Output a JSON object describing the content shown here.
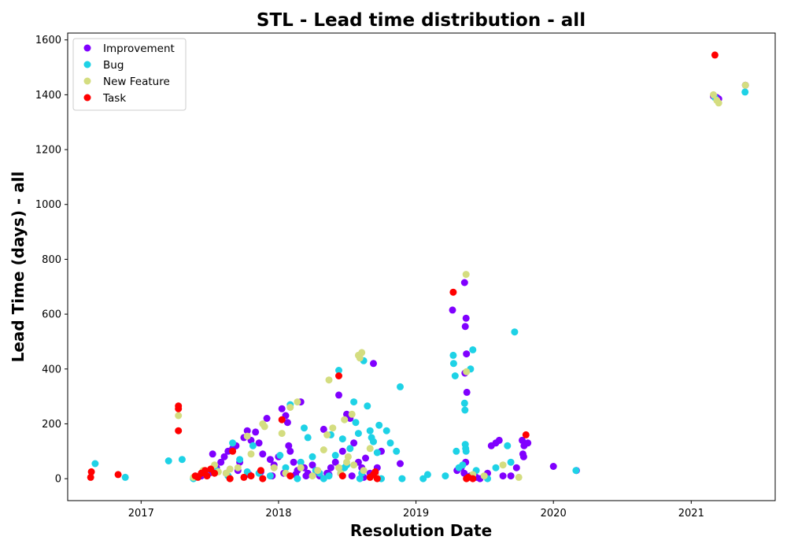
{
  "chart_data": {
    "type": "scatter",
    "title": "STL - Lead time distribution - all",
    "xlabel": "Resolution Date",
    "ylabel": "Lead Time (days) - all",
    "x_ticks": [
      "2017",
      "2018",
      "2019",
      "2020",
      "2021"
    ],
    "y_ticks": [
      "0",
      "200",
      "400",
      "600",
      "800",
      "1000",
      "1200",
      "1400",
      "1600"
    ],
    "xlim": [
      "2016-06-20",
      "2021-08-12"
    ],
    "ylim": [
      -80,
      1625
    ],
    "grid": false,
    "legend_position": "top-left",
    "series": [
      {
        "name": "Improvement",
        "color": "#8000ff",
        "points": [
          [
            "2017-06-10",
            10
          ],
          [
            "2017-07-01",
            20
          ],
          [
            "2017-07-10",
            90
          ],
          [
            "2017-07-20",
            40
          ],
          [
            "2017-08-01",
            60
          ],
          [
            "2017-08-10",
            80
          ],
          [
            "2017-08-20",
            100
          ],
          [
            "2017-09-01",
            110
          ],
          [
            "2017-09-10",
            120
          ],
          [
            "2017-09-20",
            60
          ],
          [
            "2017-10-01",
            150
          ],
          [
            "2017-10-10",
            175
          ],
          [
            "2017-10-20",
            140
          ],
          [
            "2017-11-01",
            170
          ],
          [
            "2017-11-10",
            130
          ],
          [
            "2017-11-20",
            90
          ],
          [
            "2017-12-01",
            220
          ],
          [
            "2017-12-10",
            70
          ],
          [
            "2017-12-20",
            50
          ],
          [
            "2018-01-01",
            80
          ],
          [
            "2018-01-10",
            255
          ],
          [
            "2018-01-20",
            230
          ],
          [
            "2018-01-25",
            205
          ],
          [
            "2018-01-28",
            120
          ],
          [
            "2018-02-01",
            100
          ],
          [
            "2018-02-10",
            60
          ],
          [
            "2018-02-20",
            30
          ],
          [
            "2018-03-01",
            280
          ],
          [
            "2018-03-10",
            40
          ],
          [
            "2018-03-20",
            20
          ],
          [
            "2018-04-01",
            50
          ],
          [
            "2018-04-10",
            30
          ],
          [
            "2018-04-20",
            10
          ],
          [
            "2018-05-01",
            180
          ],
          [
            "2018-05-10",
            20
          ],
          [
            "2018-05-20",
            40
          ],
          [
            "2018-06-01",
            60
          ],
          [
            "2018-06-10",
            305
          ],
          [
            "2018-06-20",
            100
          ],
          [
            "2018-07-01",
            235
          ],
          [
            "2018-07-10",
            220
          ],
          [
            "2018-07-20",
            130
          ],
          [
            "2018-08-01",
            60
          ],
          [
            "2018-08-10",
            40
          ],
          [
            "2018-08-20",
            75
          ],
          [
            "2018-09-01",
            20
          ],
          [
            "2018-09-10",
            420
          ],
          [
            "2018-09-20",
            40
          ],
          [
            "2018-10-01",
            100
          ],
          [
            "2018-11-20",
            55
          ],
          [
            "2017-08-15",
            20
          ],
          [
            "2017-09-15",
            30
          ],
          [
            "2017-10-15",
            15
          ],
          [
            "2017-11-15",
            25
          ],
          [
            "2017-12-15",
            10
          ],
          [
            "2018-01-15",
            20
          ],
          [
            "2018-02-15",
            15
          ],
          [
            "2018-03-15",
            10
          ],
          [
            "2018-04-15",
            25
          ],
          [
            "2018-05-15",
            15
          ],
          [
            "2018-06-15",
            20
          ],
          [
            "2018-07-15",
            10
          ],
          [
            "2018-08-15",
            5
          ],
          [
            "2018-09-15",
            15
          ],
          [
            "2019-04-08",
            615
          ],
          [
            "2019-05-10",
            715
          ],
          [
            "2019-05-14",
            585
          ],
          [
            "2019-05-12",
            555
          ],
          [
            "2019-05-15",
            455
          ],
          [
            "2019-05-16",
            315
          ],
          [
            "2019-05-11",
            385
          ],
          [
            "2019-05-13",
            60
          ],
          [
            "2019-05-09",
            20
          ],
          [
            "2019-04-20",
            30
          ],
          [
            "2019-05-01",
            40
          ],
          [
            "2019-05-25",
            10
          ],
          [
            "2019-06-10",
            5
          ],
          [
            "2019-06-20",
            0
          ],
          [
            "2019-07-10",
            20
          ],
          [
            "2019-07-20",
            120
          ],
          [
            "2019-08-01",
            130
          ],
          [
            "2019-08-10",
            140
          ],
          [
            "2019-08-20",
            10
          ],
          [
            "2019-09-10",
            10
          ],
          [
            "2019-09-25",
            40
          ],
          [
            "2019-10-10",
            140
          ],
          [
            "2019-10-15",
            120
          ],
          [
            "2019-10-12",
            90
          ],
          [
            "2019-10-14",
            80
          ],
          [
            "2019-10-25",
            130
          ],
          [
            "2020-01-01",
            45
          ],
          [
            "2020-03-02",
            30
          ],
          [
            "2021-03-01",
            1395
          ],
          [
            "2021-03-10",
            1390
          ],
          [
            "2021-03-15",
            1385
          ],
          [
            "2021-05-25",
            1435
          ]
        ]
      },
      {
        "name": "Bug",
        "color": "#1ed2e6",
        "points": [
          [
            "2016-09-01",
            55
          ],
          [
            "2016-11-20",
            5
          ],
          [
            "2017-03-15",
            65
          ],
          [
            "2017-04-20",
            70
          ],
          [
            "2017-05-20",
            0
          ],
          [
            "2017-06-20",
            20
          ],
          [
            "2017-07-20",
            30
          ],
          [
            "2017-08-20",
            10
          ],
          [
            "2017-09-01",
            130
          ],
          [
            "2017-09-20",
            70
          ],
          [
            "2017-10-10",
            25
          ],
          [
            "2017-10-25",
            120
          ],
          [
            "2017-11-10",
            20
          ],
          [
            "2017-12-10",
            10
          ],
          [
            "2018-01-05",
            85
          ],
          [
            "2018-01-20",
            40
          ],
          [
            "2018-02-01",
            270
          ],
          [
            "2018-02-20",
            0
          ],
          [
            "2018-03-01",
            60
          ],
          [
            "2018-03-10",
            185
          ],
          [
            "2018-03-20",
            150
          ],
          [
            "2018-04-01",
            80
          ],
          [
            "2018-04-10",
            30
          ],
          [
            "2018-04-20",
            20
          ],
          [
            "2018-05-01",
            0
          ],
          [
            "2018-05-20",
            160
          ],
          [
            "2018-06-01",
            85
          ],
          [
            "2018-06-10",
            395
          ],
          [
            "2018-06-20",
            145
          ],
          [
            "2018-07-01",
            50
          ],
          [
            "2018-07-10",
            110
          ],
          [
            "2018-07-20",
            280
          ],
          [
            "2018-07-25",
            205
          ],
          [
            "2018-08-01",
            165
          ],
          [
            "2018-08-10",
            20
          ],
          [
            "2018-08-15",
            430
          ],
          [
            "2018-08-25",
            265
          ],
          [
            "2018-09-01",
            175
          ],
          [
            "2018-09-05",
            150
          ],
          [
            "2018-09-10",
            135
          ],
          [
            "2018-09-20",
            95
          ],
          [
            "2018-09-25",
            195
          ],
          [
            "2018-10-15",
            175
          ],
          [
            "2018-10-25",
            130
          ],
          [
            "2018-11-10",
            100
          ],
          [
            "2018-11-20",
            335
          ],
          [
            "2018-11-25",
            0
          ],
          [
            "2019-01-20",
            0
          ],
          [
            "2019-02-01",
            15
          ],
          [
            "2019-03-20",
            10
          ],
          [
            "2019-04-10",
            450
          ],
          [
            "2019-04-11",
            420
          ],
          [
            "2019-04-15",
            375
          ],
          [
            "2019-04-18",
            100
          ],
          [
            "2019-05-10",
            275
          ],
          [
            "2019-05-11",
            250
          ],
          [
            "2019-05-12",
            125
          ],
          [
            "2019-05-13",
            110
          ],
          [
            "2019-05-14",
            100
          ],
          [
            "2019-05-26",
            400
          ],
          [
            "2019-06-01",
            470
          ],
          [
            "2019-06-10",
            30
          ],
          [
            "2019-07-10",
            0
          ],
          [
            "2019-08-01",
            40
          ],
          [
            "2019-09-01",
            120
          ],
          [
            "2019-09-10",
            60
          ],
          [
            "2019-09-20",
            535
          ],
          [
            "2019-04-25",
            40
          ],
          [
            "2019-05-05",
            50
          ],
          [
            "2018-05-15",
            10
          ],
          [
            "2018-06-25",
            40
          ],
          [
            "2018-08-05",
            0
          ],
          [
            "2018-10-01",
            0
          ],
          [
            "2020-03-01",
            30
          ],
          [
            "2021-03-05",
            1390
          ],
          [
            "2021-05-24",
            1410
          ]
        ]
      },
      {
        "name": "New Feature",
        "color": "#d4dd80",
        "points": [
          [
            "2017-04-10",
            230
          ],
          [
            "2017-05-20",
            5
          ],
          [
            "2017-06-15",
            30
          ],
          [
            "2017-07-15",
            50
          ],
          [
            "2017-08-15",
            20
          ],
          [
            "2017-09-15",
            40
          ],
          [
            "2017-10-10",
            155
          ],
          [
            "2017-10-20",
            90
          ],
          [
            "2017-11-20",
            200
          ],
          [
            "2017-11-25",
            190
          ],
          [
            "2017-12-20",
            40
          ],
          [
            "2018-01-10",
            165
          ],
          [
            "2018-01-20",
            20
          ],
          [
            "2018-02-01",
            260
          ],
          [
            "2018-02-20",
            280
          ],
          [
            "2018-03-01",
            40
          ],
          [
            "2018-04-01",
            10
          ],
          [
            "2018-04-15",
            30
          ],
          [
            "2018-05-01",
            105
          ],
          [
            "2018-05-10",
            160
          ],
          [
            "2018-05-15",
            360
          ],
          [
            "2018-05-25",
            185
          ],
          [
            "2018-06-10",
            40
          ],
          [
            "2018-06-25",
            215
          ],
          [
            "2018-07-01",
            60
          ],
          [
            "2018-07-15",
            235
          ],
          [
            "2018-07-20",
            50
          ],
          [
            "2018-08-01",
            450
          ],
          [
            "2018-08-05",
            440
          ],
          [
            "2018-08-10",
            460
          ],
          [
            "2018-08-15",
            30
          ],
          [
            "2018-09-01",
            110
          ],
          [
            "2018-09-15",
            10
          ],
          [
            "2019-05-15",
            390
          ],
          [
            "2019-05-14",
            745
          ],
          [
            "2019-06-01",
            15
          ],
          [
            "2019-07-01",
            10
          ],
          [
            "2019-08-20",
            50
          ],
          [
            "2019-10-01",
            5
          ],
          [
            "2017-06-25",
            10
          ],
          [
            "2017-07-25",
            25
          ],
          [
            "2017-08-25",
            35
          ],
          [
            "2018-06-15",
            20
          ],
          [
            "2018-07-05",
            80
          ],
          [
            "2021-03-01",
            1400
          ],
          [
            "2021-03-10",
            1380
          ],
          [
            "2021-03-15",
            1370
          ],
          [
            "2021-05-25",
            1435
          ]
        ]
      },
      {
        "name": "Task",
        "color": "#ff0000",
        "points": [
          [
            "2016-08-20",
            5
          ],
          [
            "2016-08-22",
            25
          ],
          [
            "2016-11-01",
            15
          ],
          [
            "2017-04-10",
            265
          ],
          [
            "2017-04-10",
            255
          ],
          [
            "2017-04-10",
            175
          ],
          [
            "2017-05-25",
            10
          ],
          [
            "2017-06-01",
            5
          ],
          [
            "2017-06-10",
            20
          ],
          [
            "2017-06-20",
            30
          ],
          [
            "2017-06-25",
            10
          ],
          [
            "2017-07-05",
            35
          ],
          [
            "2017-07-15",
            20
          ],
          [
            "2017-08-25",
            0
          ],
          [
            "2017-09-01",
            100
          ],
          [
            "2017-10-01",
            5
          ],
          [
            "2017-10-20",
            10
          ],
          [
            "2017-11-15",
            30
          ],
          [
            "2017-11-20",
            0
          ],
          [
            "2018-01-10",
            215
          ],
          [
            "2018-02-01",
            10
          ],
          [
            "2018-06-10",
            375
          ],
          [
            "2018-06-20",
            10
          ],
          [
            "2018-09-01",
            5
          ],
          [
            "2018-09-10",
            15
          ],
          [
            "2018-09-15",
            25
          ],
          [
            "2018-09-20",
            0
          ],
          [
            "2019-04-10",
            680
          ],
          [
            "2019-05-15",
            0
          ],
          [
            "2019-05-20",
            5
          ],
          [
            "2019-06-01",
            0
          ],
          [
            "2019-10-20",
            160
          ],
          [
            "2021-03-05",
            1545
          ]
        ]
      }
    ]
  }
}
